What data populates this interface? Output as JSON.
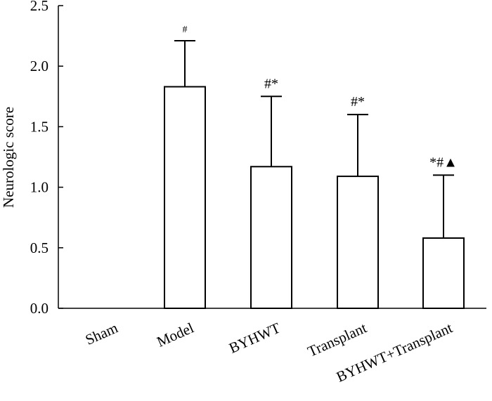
{
  "chart_data": {
    "type": "bar",
    "title": "",
    "xlabel": "",
    "ylabel": "Neurologic score",
    "ylim": [
      0,
      2.5
    ],
    "yticks": [
      "0.0",
      "0.5",
      "1.0",
      "1.5",
      "2.0",
      "2.5"
    ],
    "categories": [
      "Sham",
      "Model",
      "BYHWT",
      "Transplant",
      "BYHWT+Transplant"
    ],
    "values": [
      0,
      1.83,
      1.17,
      1.09,
      0.58
    ],
    "errors": [
      0,
      0.38,
      0.58,
      0.51,
      0.52
    ],
    "annotations": [
      "",
      "#",
      "#*",
      "#*",
      "*#▲"
    ],
    "grid": false,
    "colors": {
      "bar_fill": "#ffffff",
      "stroke": "#000000"
    }
  }
}
